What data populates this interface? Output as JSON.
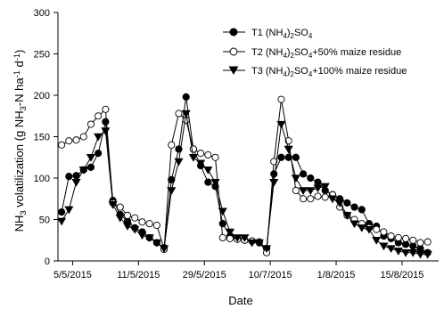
{
  "chart_data": {
    "type": "line",
    "xlabel": "Date",
    "ylabel": "NH3 volatilization (g NH3-N ha-1 d-1)",
    "ylim": [
      0,
      300
    ],
    "yticks": [
      "0",
      "50",
      "100",
      "150",
      "200",
      "250",
      "300"
    ],
    "x_tick_labels": [
      "5/5/2015",
      "11/5/2015",
      "29/5/2015",
      "10/7/2015",
      "1/8/2015",
      "15/8/2015"
    ],
    "x_tick_label_positions": [
      1.5,
      10.5,
      19.5,
      28.5,
      37.5,
      46.5
    ],
    "x_range": [
      -0.5,
      51.5
    ],
    "grid": false,
    "legend_position": "top-right",
    "legend": [
      {
        "label": "T1 (NH4)2SO4",
        "marker": "filled-circle"
      },
      {
        "label": "T2 (NH4)2SO4+50% maize residue",
        "marker": "open-circle"
      },
      {
        "label": "T3 (NH4)2SO4+100% maize residue",
        "marker": "filled-triangle-down"
      }
    ],
    "series": [
      {
        "x": [
          0,
          1,
          2,
          3,
          4,
          5,
          6,
          7,
          8,
          9,
          10,
          11,
          12,
          13,
          14,
          15,
          16,
          17,
          18,
          19,
          20,
          21,
          22,
          23,
          24,
          25,
          26,
          27,
          28,
          29,
          30,
          31,
          32,
          33,
          34,
          35,
          36,
          37,
          38,
          39,
          40,
          41,
          42,
          43,
          44,
          45,
          46,
          47,
          48,
          49,
          50
        ],
        "values": [
          59,
          102,
          103,
          110,
          113,
          130,
          168,
          73,
          56,
          48,
          40,
          35,
          28,
          22,
          16,
          98,
          135,
          198,
          135,
          115,
          95,
          90,
          45,
          30,
          27,
          25,
          24,
          22,
          15,
          105,
          125,
          125,
          125,
          105,
          100,
          95,
          85,
          80,
          75,
          70,
          65,
          62,
          45,
          42,
          30,
          27,
          22,
          20,
          18,
          15,
          10
        ]
      },
      {
        "x": [
          0,
          1,
          2,
          3,
          4,
          5,
          6,
          7,
          8,
          9,
          10,
          11,
          12,
          13,
          14,
          15,
          16,
          17,
          18,
          19,
          20,
          21,
          22,
          23,
          24,
          25,
          26,
          27,
          28,
          29,
          30,
          31,
          32,
          33,
          34,
          35,
          36,
          37,
          38,
          39,
          40,
          41,
          42,
          43,
          44,
          45,
          46,
          47,
          48,
          49,
          50
        ],
        "values": [
          140,
          145,
          146,
          150,
          165,
          175,
          183,
          70,
          65,
          55,
          52,
          47,
          45,
          43,
          14,
          140,
          178,
          170,
          135,
          130,
          128,
          125,
          28,
          27,
          26,
          25,
          24,
          23,
          10,
          120,
          195,
          145,
          85,
          75,
          75,
          78,
          77,
          80,
          65,
          55,
          50,
          45,
          40,
          38,
          35,
          30,
          28,
          27,
          25,
          22,
          23
        ]
      },
      {
        "x": [
          0,
          1,
          2,
          3,
          4,
          5,
          6,
          7,
          8,
          9,
          10,
          11,
          12,
          13,
          14,
          15,
          16,
          17,
          18,
          19,
          20,
          21,
          22,
          23,
          24,
          25,
          26,
          27,
          28,
          29,
          30,
          31,
          32,
          33,
          34,
          35,
          36,
          37,
          38,
          39,
          40,
          41,
          42,
          43,
          44,
          45,
          46,
          47,
          48,
          49,
          50
        ],
        "values": [
          48,
          62,
          95,
          110,
          125,
          150,
          157,
          68,
          52,
          42,
          38,
          31,
          28,
          22,
          15,
          85,
          120,
          178,
          125,
          118,
          110,
          95,
          60,
          35,
          28,
          28,
          22,
          22,
          15,
          95,
          165,
          135,
          100,
          85,
          85,
          88,
          90,
          75,
          70,
          55,
          45,
          40,
          38,
          25,
          18,
          15,
          12,
          10,
          10,
          8,
          8
        ]
      }
    ]
  }
}
